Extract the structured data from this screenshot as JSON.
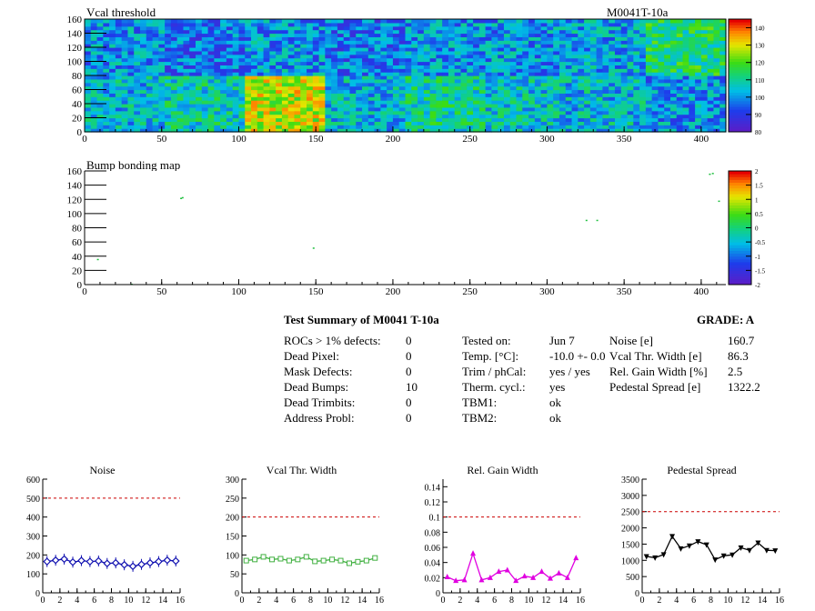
{
  "module_id": "M0041T-10a",
  "colors": {
    "noise": "#1010b0",
    "vcal": "#40b040",
    "gain": "#e000e0",
    "pedestal": "#000000",
    "limit": "#cc0000"
  },
  "top_map": {
    "title": "Vcal threshold",
    "x_ticks": [
      "0",
      "50",
      "100",
      "150",
      "200",
      "250",
      "300",
      "350",
      "400"
    ],
    "y_ticks": [
      "0",
      "20",
      "40",
      "60",
      "80",
      "100",
      "120",
      "140",
      "160"
    ],
    "palette_ticks": [
      "80",
      "90",
      "100",
      "110",
      "120",
      "130",
      "140"
    ],
    "zrange": [
      80,
      145
    ],
    "roc_means": [
      [
        104,
        108,
        128,
        104,
        110,
        106,
        104,
        100
      ],
      [
        100,
        96,
        100,
        96,
        100,
        100,
        102,
        113
      ]
    ]
  },
  "bump_map": {
    "title": "Bump bonding map",
    "x_ticks": [
      "0",
      "50",
      "100",
      "150",
      "200",
      "250",
      "300",
      "350",
      "400"
    ],
    "y_ticks": [
      "0",
      "20",
      "40",
      "60",
      "80",
      "100",
      "120",
      "140",
      "160"
    ],
    "palette_ticks": [
      "-2",
      "-1.5",
      "-1",
      "-0.5",
      "0",
      "0.5",
      "1",
      "1.5",
      "2"
    ],
    "dead_bumps": [
      [
        8,
        35
      ],
      [
        30,
        0
      ],
      [
        62,
        121
      ],
      [
        63,
        122
      ],
      [
        148,
        51
      ],
      [
        325,
        90
      ],
      [
        332,
        90
      ],
      [
        405,
        155
      ],
      [
        407,
        156
      ],
      [
        411,
        117
      ]
    ]
  },
  "summary": {
    "title": "Test Summary of M0041     T-10a",
    "grade": "GRADE:  A",
    "left": [
      {
        "label": "ROCs > 1% defects:",
        "value": "0"
      },
      {
        "label": "Dead Pixel:",
        "value": "0"
      },
      {
        "label": "Mask Defects:",
        "value": "0"
      },
      {
        "label": "Dead Bumps:",
        "value": "10"
      },
      {
        "label": "Dead Trimbits:",
        "value": "0"
      },
      {
        "label": "Address Probl:",
        "value": "0"
      }
    ],
    "middle": [
      {
        "label": "Tested on:",
        "value": "Jun 7"
      },
      {
        "label": "Temp. [°C]:",
        "value": "-10.0 +- 0.0"
      },
      {
        "label": "Trim / phCal:",
        "value": "yes / yes"
      },
      {
        "label": "Therm. cycl.:",
        "value": "yes"
      },
      {
        "label": "TBM1:",
        "value": "ok"
      },
      {
        "label": "TBM2:",
        "value": "ok"
      }
    ],
    "right": [
      {
        "label": "Noise [e]",
        "value": "160.7"
      },
      {
        "label": "Vcal Thr. Width [e]",
        "value": "86.3"
      },
      {
        "label": "Rel. Gain Width [%]",
        "value": "2.5"
      },
      {
        "label": "Pedestal Spread [e]",
        "value": "1322.2"
      }
    ]
  },
  "chart_data": [
    {
      "type": "line",
      "title": "Noise",
      "ylim": [
        0,
        600
      ],
      "xlim": [
        0,
        16
      ],
      "limit": 500,
      "x_ticks": [
        "0",
        "2",
        "4",
        "6",
        "8",
        "10",
        "12",
        "14",
        "16"
      ],
      "y_ticks": [
        "0",
        "100",
        "200",
        "300",
        "400",
        "500",
        "600"
      ],
      "x": [
        0.5,
        1.5,
        2.5,
        3.5,
        4.5,
        5.5,
        6.5,
        7.5,
        8.5,
        9.5,
        10.5,
        11.5,
        12.5,
        13.5,
        14.5,
        15.5
      ],
      "values": [
        165,
        172,
        178,
        162,
        170,
        165,
        168,
        155,
        158,
        148,
        140,
        150,
        158,
        165,
        172,
        168
      ]
    },
    {
      "type": "line",
      "title": "Vcal Thr. Width",
      "ylim": [
        0,
        300
      ],
      "xlim": [
        0,
        16
      ],
      "limit": 200,
      "x_ticks": [
        "0",
        "2",
        "4",
        "6",
        "8",
        "10",
        "12",
        "14",
        "16"
      ],
      "y_ticks": [
        "0",
        "50",
        "100",
        "150",
        "200",
        "250",
        "300"
      ],
      "x": [
        0.5,
        1.5,
        2.5,
        3.5,
        4.5,
        5.5,
        6.5,
        7.5,
        8.5,
        9.5,
        10.5,
        11.5,
        12.5,
        13.5,
        14.5,
        15.5
      ],
      "values": [
        85,
        88,
        95,
        88,
        90,
        85,
        88,
        95,
        83,
        85,
        88,
        85,
        78,
        82,
        85,
        92
      ]
    },
    {
      "type": "line",
      "title": "Rel. Gain Width",
      "ylim": [
        0,
        0.15
      ],
      "xlim": [
        0,
        16
      ],
      "limit": 0.1,
      "x_ticks": [
        "0",
        "2",
        "4",
        "6",
        "8",
        "10",
        "12",
        "14",
        "16"
      ],
      "y_ticks": [
        "0",
        "0.02",
        "0.04",
        "0.06",
        "0.08",
        "0.1",
        "0.12",
        "0.14"
      ],
      "x": [
        0.5,
        1.5,
        2.5,
        3.5,
        4.5,
        5.5,
        6.5,
        7.5,
        8.5,
        9.5,
        10.5,
        11.5,
        12.5,
        13.5,
        14.5,
        15.5
      ],
      "values": [
        0.021,
        0.016,
        0.017,
        0.052,
        0.017,
        0.02,
        0.028,
        0.03,
        0.016,
        0.022,
        0.02,
        0.028,
        0.019,
        0.026,
        0.02,
        0.046
      ]
    },
    {
      "type": "line",
      "title": "Pedestal Spread",
      "ylim": [
        0,
        3500
      ],
      "xlim": [
        0,
        16
      ],
      "limit": 2500,
      "x_ticks": [
        "0",
        "2",
        "4",
        "6",
        "8",
        "10",
        "12",
        "14",
        "16"
      ],
      "y_ticks": [
        "0",
        "500",
        "1000",
        "1500",
        "2000",
        "2500",
        "3000",
        "3500"
      ],
      "x": [
        0.5,
        1.5,
        2.5,
        3.5,
        4.5,
        5.5,
        6.5,
        7.5,
        8.5,
        9.5,
        10.5,
        11.5,
        12.5,
        13.5,
        14.5,
        15.5
      ],
      "values": [
        1120,
        1080,
        1180,
        1740,
        1360,
        1450,
        1580,
        1480,
        1020,
        1140,
        1170,
        1390,
        1310,
        1540,
        1310,
        1300
      ]
    }
  ]
}
